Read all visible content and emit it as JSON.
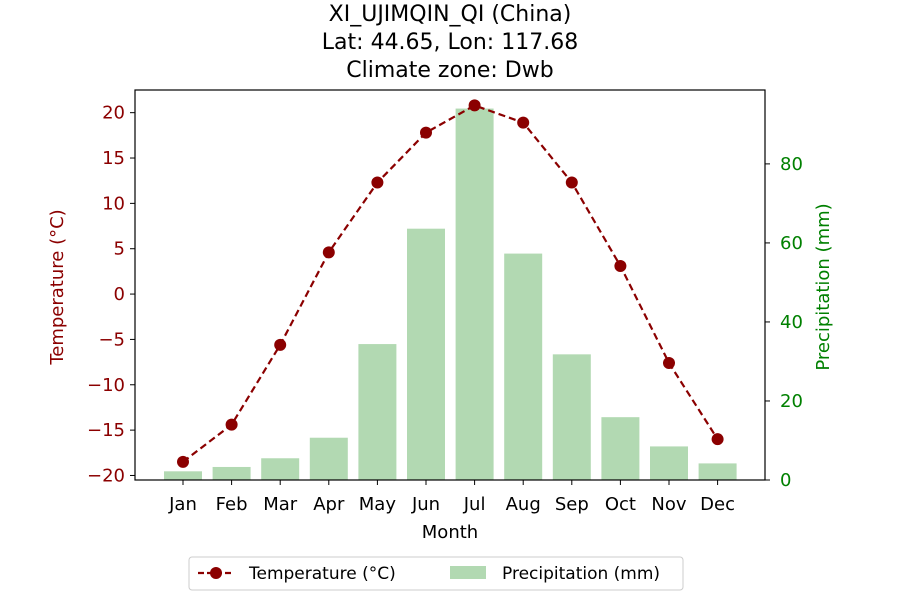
{
  "chart_data": {
    "type": "bar",
    "title_lines": [
      "XI_UJIMQIN_QI (China)",
      "Lat: 44.65, Lon: 117.68",
      "Climate zone: Dwb"
    ],
    "xlabel": "Month",
    "categories": [
      "Jan",
      "Feb",
      "Mar",
      "Apr",
      "May",
      "Jun",
      "Jul",
      "Aug",
      "Sep",
      "Oct",
      "Nov",
      "Dec"
    ],
    "series": [
      {
        "name": "Temperature (°C)",
        "type": "line",
        "axis": "left",
        "values": [
          -18.5,
          -14.4,
          -5.6,
          4.6,
          12.3,
          17.8,
          20.8,
          18.9,
          12.3,
          3.1,
          -7.6,
          -16.0
        ],
        "color": "#8b0000",
        "linestyle": "dashed",
        "marker": "circle"
      },
      {
        "name": "Precipitation (mm)",
        "type": "bar",
        "axis": "right",
        "values": [
          2.2,
          3.3,
          5.5,
          10.7,
          34.4,
          63.6,
          94.0,
          57.3,
          31.8,
          15.9,
          8.5,
          4.2
        ],
        "color": "#b2d9b2"
      }
    ],
    "y_left": {
      "label": "Temperature (°C)",
      "ylim": [
        -20.5,
        22.5
      ],
      "ticks": [
        -20,
        -15,
        -10,
        -5,
        0,
        5,
        10,
        15,
        20
      ],
      "tick_labels": [
        "−20",
        "−15",
        "−10",
        "−5",
        "0",
        "5",
        "10",
        "15",
        "20"
      ],
      "color": "#8b0000"
    },
    "y_right": {
      "label": "Precipitation (mm)",
      "ylim": [
        0,
        98.7
      ],
      "ticks": [
        0,
        20,
        40,
        60,
        80
      ],
      "tick_labels": [
        "0",
        "20",
        "40",
        "60",
        "80"
      ],
      "color": "#008000"
    },
    "grid": false,
    "legend": {
      "placement": "bottom-center",
      "entries": [
        "Temperature (°C)",
        "Precipitation (mm)"
      ]
    }
  }
}
